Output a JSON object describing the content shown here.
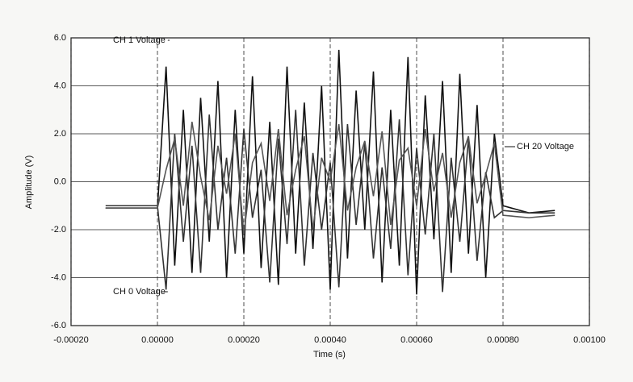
{
  "chart_data": {
    "type": "line",
    "xlabel": "Time (s)",
    "ylabel": "Amplitude (V)",
    "x": [
      -0.00012,
      -6e-05,
      0,
      2e-05,
      4e-05,
      6e-05,
      8e-05,
      0.0001,
      0.00012,
      0.00014,
      0.00016,
      0.00018,
      0.0002,
      0.00022,
      0.00024,
      0.00026,
      0.00028,
      0.0003,
      0.00032,
      0.00034,
      0.00036,
      0.00038,
      0.0004,
      0.00042,
      0.00044,
      0.00046,
      0.00048,
      0.0005,
      0.00052,
      0.00054,
      0.00056,
      0.00058,
      0.0006,
      0.00062,
      0.00064,
      0.00066,
      0.00068,
      0.0007,
      0.00072,
      0.00074,
      0.00076,
      0.00078,
      0.0008,
      0.00086,
      0.00092
    ],
    "series": [
      {
        "name": "CH 1 Voltage",
        "color": "#111111",
        "values": [
          -1.1,
          -1.1,
          -1.1,
          4.8,
          -3.5,
          3.0,
          -3.8,
          3.5,
          -2.5,
          4.2,
          -4.0,
          3.0,
          -3.0,
          4.4,
          -3.6,
          2.5,
          -4.3,
          4.8,
          -3.0,
          3.3,
          -2.8,
          4.0,
          -4.5,
          5.5,
          -3.2,
          3.8,
          -2.0,
          4.6,
          -4.2,
          3.0,
          -3.5,
          5.2,
          -4.7,
          3.6,
          -2.4,
          4.2,
          -3.8,
          4.5,
          -3.0,
          3.2,
          -4.0,
          2.0,
          -1.0,
          -1.3,
          -1.2
        ]
      },
      {
        "name": "CH 0 Voltage",
        "color": "#333333",
        "values": [
          -1.0,
          -1.0,
          -1.0,
          -4.5,
          2.0,
          -2.5,
          1.5,
          -3.8,
          2.8,
          -2.0,
          1.0,
          -3.0,
          2.2,
          -1.5,
          0.5,
          -4.2,
          1.8,
          -2.6,
          3.0,
          -3.5,
          1.2,
          -2.0,
          0.8,
          -4.4,
          2.4,
          -1.8,
          1.6,
          -3.2,
          0.6,
          -2.8,
          2.6,
          -3.9,
          1.4,
          -2.2,
          2.0,
          -4.6,
          1.0,
          -2.5,
          1.8,
          -3.3,
          0.4,
          -1.5,
          -1.2,
          -1.3,
          -1.3
        ]
      },
      {
        "name": "CH 20 Voltage",
        "color": "#555555",
        "values": [
          -1.1,
          -1.1,
          -1.1,
          0.5,
          1.8,
          -1.0,
          2.5,
          0.2,
          -1.6,
          1.5,
          -0.5,
          2.0,
          -2.2,
          0.8,
          1.6,
          -0.8,
          2.2,
          -1.4,
          0.5,
          1.9,
          -2.0,
          1.0,
          0.0,
          2.4,
          -1.2,
          0.6,
          1.7,
          -0.6,
          2.1,
          -1.8,
          0.9,
          1.4,
          -1.0,
          2.2,
          -0.4,
          1.2,
          -1.5,
          0.8,
          1.9,
          -0.9,
          0.3,
          1.6,
          -1.4,
          -1.5,
          -1.4
        ]
      }
    ],
    "xlim": [
      -0.0002,
      0.001
    ],
    "xticks": [
      {
        "value": -0.0002,
        "label": "-0.00020"
      },
      {
        "value": 0,
        "label": "0.00000"
      },
      {
        "value": 0.0002,
        "label": "0.00020"
      },
      {
        "value": 0.0004,
        "label": "0.00040"
      },
      {
        "value": 0.0006,
        "label": "0.00060"
      },
      {
        "value": 0.0008,
        "label": "0.00080"
      },
      {
        "value": 0.001,
        "label": "0.00100"
      }
    ],
    "ylim": [
      -6,
      6
    ],
    "yticks": [
      {
        "value": -6,
        "label": "-6.0"
      },
      {
        "value": -4,
        "label": "-4.0"
      },
      {
        "value": -2,
        "label": "-2.0"
      },
      {
        "value": 0,
        "label": "0.0"
      },
      {
        "value": 2,
        "label": "2.0"
      },
      {
        "value": 4,
        "label": "4.0"
      },
      {
        "value": 6,
        "label": "6.0"
      }
    ],
    "grid": true
  }
}
